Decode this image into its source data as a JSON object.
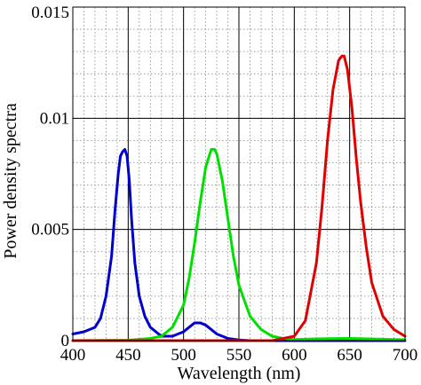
{
  "chart_data": {
    "type": "line",
    "title": "",
    "xlabel": "Wavelength (nm)",
    "ylabel": "Power density spectra",
    "xlim": [
      400,
      700
    ],
    "ylim": [
      0,
      0.015
    ],
    "x_ticks": [
      400,
      450,
      500,
      550,
      600,
      650,
      700
    ],
    "x_tick_labels": [
      "400",
      "450",
      "500",
      "550",
      "600",
      "650",
      "700"
    ],
    "y_ticks": [
      0,
      0.005,
      0.01,
      0.015
    ],
    "y_tick_labels": [
      "0",
      "0.005",
      "0.01",
      "0.015"
    ],
    "grid": true,
    "legend": "none",
    "series": [
      {
        "color": "#0000cc",
        "x": [
          400,
          410,
          420,
          425,
          430,
          435,
          438,
          441,
          443,
          445,
          447,
          449,
          451,
          453,
          456,
          460,
          465,
          470,
          480,
          490,
          495,
          500,
          505,
          510,
          515,
          520,
          525,
          530,
          540,
          550,
          560,
          600,
          650,
          700
        ],
        "y": [
          0.0003,
          0.0004,
          0.0006,
          0.001,
          0.002,
          0.0038,
          0.0058,
          0.0075,
          0.0083,
          0.0085,
          0.0086,
          0.0083,
          0.0072,
          0.0055,
          0.0035,
          0.002,
          0.0011,
          0.0006,
          0.0002,
          0.0002,
          0.0003,
          0.0004,
          0.0006,
          0.0008,
          0.0008,
          0.0007,
          0.0005,
          0.0003,
          0.0001,
          3e-05,
          0.0,
          0.0,
          0.0,
          0.0
        ]
      },
      {
        "color": "#00e000",
        "x": [
          400,
          450,
          470,
          480,
          490,
          500,
          505,
          510,
          515,
          520,
          525,
          528,
          530,
          535,
          540,
          545,
          550,
          560,
          570,
          580,
          590,
          600,
          620,
          650,
          700
        ],
        "y": [
          0.0,
          2e-05,
          0.0001,
          0.0002,
          0.0006,
          0.0016,
          0.0028,
          0.0044,
          0.0062,
          0.0078,
          0.0086,
          0.0086,
          0.0084,
          0.0072,
          0.0055,
          0.0038,
          0.0025,
          0.0011,
          0.0005,
          0.0002,
          0.0001,
          5e-05,
          8e-05,
          0.0001,
          4e-05
        ]
      },
      {
        "color": "#e00000",
        "x": [
          400,
          500,
          580,
          600,
          610,
          620,
          625,
          630,
          635,
          640,
          643,
          645,
          648,
          652,
          656,
          660,
          665,
          670,
          680,
          690,
          700
        ],
        "y": [
          0.0,
          0.0,
          0.0,
          0.0002,
          0.0009,
          0.0035,
          0.006,
          0.009,
          0.0113,
          0.0126,
          0.0128,
          0.0128,
          0.0122,
          0.0105,
          0.0082,
          0.0062,
          0.0042,
          0.0026,
          0.0011,
          0.0005,
          0.0002
        ]
      }
    ]
  }
}
